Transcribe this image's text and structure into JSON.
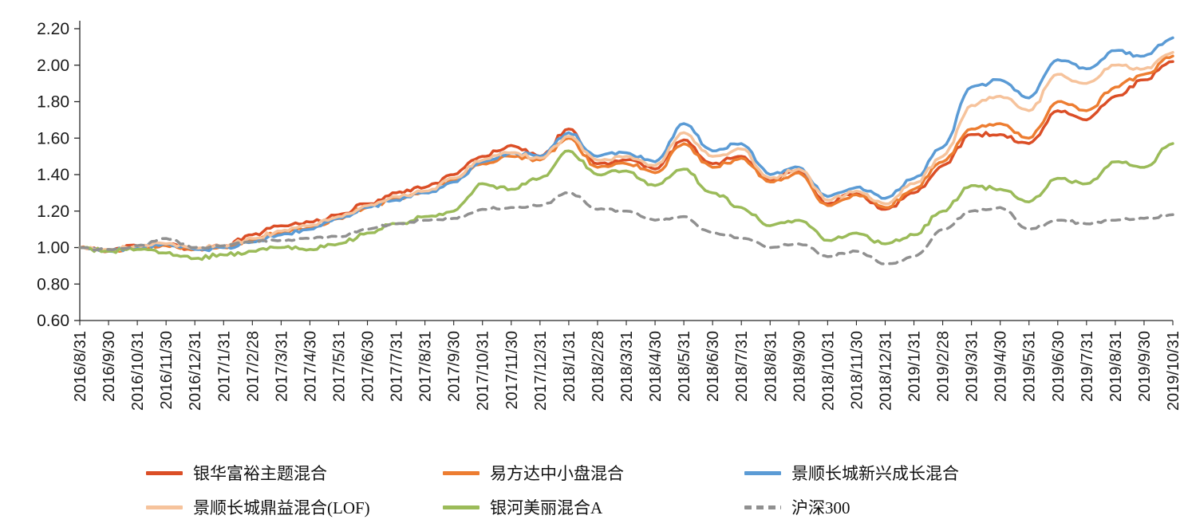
{
  "chart_data": {
    "type": "line",
    "title": "",
    "xlabel": "",
    "ylabel": "",
    "grid": false,
    "legend_position": "bottom",
    "axis_color": "#262626",
    "ylim": [
      0.6,
      2.2
    ],
    "yticks": [
      0.6,
      0.8,
      1.0,
      1.2,
      1.4,
      1.6,
      1.8,
      2.0,
      2.2
    ],
    "x": [
      "2016/8/31",
      "2016/9/30",
      "2016/10/31",
      "2016/11/30",
      "2016/12/31",
      "2017/1/31",
      "2017/2/28",
      "2017/3/31",
      "2017/4/30",
      "2017/5/31",
      "2017/6/30",
      "2017/7/31",
      "2017/8/31",
      "2017/9/30",
      "2017/10/31",
      "2017/11/30",
      "2017/12/31",
      "2018/1/31",
      "2018/2/28",
      "2018/3/31",
      "2018/4/30",
      "2018/5/31",
      "2018/6/30",
      "2018/7/31",
      "2018/8/31",
      "2018/9/30",
      "2018/10/31",
      "2018/11/30",
      "2018/12/31",
      "2019/1/31",
      "2019/2/28",
      "2019/3/31",
      "2019/4/30",
      "2019/5/31",
      "2019/6/30",
      "2019/7/31",
      "2019/8/31",
      "2019/9/30",
      "2019/10/31"
    ],
    "series": [
      {
        "name": "银华富裕主题混合",
        "color": "#DB4E26",
        "style": "solid",
        "values": [
          1.0,
          0.98,
          1.01,
          1.02,
          0.99,
          1.01,
          1.07,
          1.12,
          1.14,
          1.18,
          1.24,
          1.3,
          1.33,
          1.4,
          1.5,
          1.56,
          1.5,
          1.65,
          1.46,
          1.48,
          1.43,
          1.59,
          1.46,
          1.5,
          1.37,
          1.42,
          1.24,
          1.3,
          1.21,
          1.3,
          1.45,
          1.62,
          1.62,
          1.57,
          1.75,
          1.7,
          1.83,
          1.92,
          2.02
        ]
      },
      {
        "name": "易方达中小盘混合",
        "color": "#ED7D31",
        "style": "solid",
        "values": [
          1.0,
          0.98,
          1.0,
          1.01,
          0.99,
          1.0,
          1.04,
          1.08,
          1.11,
          1.16,
          1.22,
          1.27,
          1.3,
          1.37,
          1.46,
          1.5,
          1.48,
          1.6,
          1.44,
          1.46,
          1.41,
          1.57,
          1.44,
          1.49,
          1.36,
          1.41,
          1.23,
          1.29,
          1.22,
          1.32,
          1.47,
          1.65,
          1.68,
          1.6,
          1.8,
          1.75,
          1.88,
          1.95,
          2.05
        ]
      },
      {
        "name": "景顺长城新兴成长混合",
        "color": "#5B9BD5",
        "style": "solid",
        "values": [
          1.0,
          0.98,
          1.0,
          1.02,
          0.99,
          1.0,
          1.03,
          1.07,
          1.1,
          1.16,
          1.22,
          1.26,
          1.3,
          1.36,
          1.47,
          1.52,
          1.5,
          1.63,
          1.5,
          1.52,
          1.47,
          1.68,
          1.53,
          1.57,
          1.4,
          1.44,
          1.28,
          1.33,
          1.27,
          1.38,
          1.55,
          1.88,
          1.92,
          1.82,
          2.03,
          1.98,
          2.08,
          2.05,
          2.15
        ]
      },
      {
        "name": "景顺长城鼎益混合(LOF)",
        "color": "#F6C39C",
        "style": "solid",
        "values": [
          1.0,
          0.99,
          1.01,
          1.02,
          1.0,
          1.01,
          1.05,
          1.09,
          1.12,
          1.17,
          1.23,
          1.28,
          1.31,
          1.38,
          1.48,
          1.52,
          1.49,
          1.61,
          1.48,
          1.5,
          1.45,
          1.63,
          1.5,
          1.54,
          1.38,
          1.43,
          1.26,
          1.31,
          1.24,
          1.35,
          1.5,
          1.78,
          1.83,
          1.75,
          1.95,
          1.9,
          2.0,
          1.98,
          2.07
        ]
      },
      {
        "name": "银河美丽混合A",
        "color": "#9BBB59",
        "style": "solid",
        "values": [
          1.0,
          0.98,
          0.99,
          0.97,
          0.94,
          0.96,
          0.98,
          1.0,
          0.99,
          1.02,
          1.08,
          1.13,
          1.17,
          1.2,
          1.35,
          1.32,
          1.38,
          1.53,
          1.4,
          1.42,
          1.34,
          1.43,
          1.3,
          1.22,
          1.12,
          1.15,
          1.04,
          1.08,
          1.02,
          1.07,
          1.2,
          1.34,
          1.32,
          1.25,
          1.38,
          1.35,
          1.47,
          1.44,
          1.57
        ]
      },
      {
        "name": "沪深300",
        "color": "#909090",
        "style": "dashed",
        "values": [
          1.0,
          0.99,
          1.01,
          1.05,
          1.0,
          1.01,
          1.03,
          1.04,
          1.05,
          1.06,
          1.1,
          1.13,
          1.15,
          1.16,
          1.21,
          1.22,
          1.23,
          1.3,
          1.21,
          1.2,
          1.15,
          1.17,
          1.08,
          1.05,
          1.0,
          1.02,
          0.95,
          0.98,
          0.91,
          0.95,
          1.1,
          1.2,
          1.22,
          1.1,
          1.15,
          1.13,
          1.15,
          1.16,
          1.18
        ]
      }
    ]
  }
}
